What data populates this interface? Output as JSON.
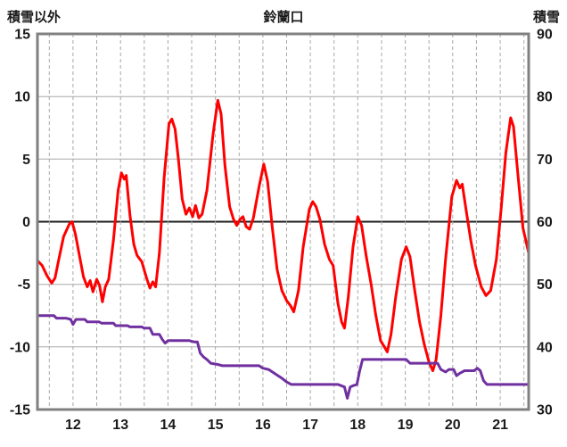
{
  "chart_data": {
    "type": "line",
    "title": "鈴蘭口",
    "left_axis": {
      "label": "積雪以外",
      "min": -15,
      "max": 15,
      "ticks": [
        15,
        10,
        5,
        0,
        -5,
        -10,
        -15
      ]
    },
    "right_axis": {
      "label": "積雪",
      "min": 30,
      "max": 90,
      "ticks": [
        90,
        80,
        70,
        60,
        50,
        40,
        30
      ]
    },
    "x_axis": {
      "min": 11.75,
      "max": 22.1,
      "tick_labels": [
        "12",
        "13",
        "14",
        "15",
        "16",
        "17",
        "18",
        "19",
        "20",
        "21"
      ],
      "tick_positions": [
        12.5,
        13.5,
        14.5,
        15.5,
        16.5,
        17.5,
        18.5,
        19.5,
        20.5,
        21.5
      ],
      "grid": {
        "start": 12.0,
        "end": 22.0,
        "step": 0.5
      }
    },
    "colors": {
      "temperature": "#ff0000",
      "snow_depth": "#7030a0",
      "grid": "#a8a8a8",
      "zero_line": "#1a1a1a",
      "frame": "#808080",
      "tick_text": "#1a1a1a"
    },
    "legend": "none",
    "series": [
      {
        "name": "temperature",
        "axis": "left",
        "color": "#ff0000",
        "points": [
          [
            11.75,
            -3.1
          ],
          [
            11.85,
            -3.5
          ],
          [
            11.95,
            -4.3
          ],
          [
            12.05,
            -4.9
          ],
          [
            12.12,
            -4.5
          ],
          [
            12.2,
            -3.0
          ],
          [
            12.3,
            -1.2
          ],
          [
            12.42,
            -0.2
          ],
          [
            12.48,
            0.0
          ],
          [
            12.55,
            -1.0
          ],
          [
            12.65,
            -3.0
          ],
          [
            12.72,
            -4.4
          ],
          [
            12.8,
            -5.2
          ],
          [
            12.86,
            -4.7
          ],
          [
            12.92,
            -5.6
          ],
          [
            13.0,
            -4.6
          ],
          [
            13.06,
            -5.1
          ],
          [
            13.12,
            -6.4
          ],
          [
            13.18,
            -5.2
          ],
          [
            13.25,
            -4.6
          ],
          [
            13.35,
            -1.5
          ],
          [
            13.45,
            2.5
          ],
          [
            13.52,
            3.9
          ],
          [
            13.58,
            3.4
          ],
          [
            13.62,
            3.7
          ],
          [
            13.7,
            0.5
          ],
          [
            13.78,
            -1.8
          ],
          [
            13.85,
            -2.7
          ],
          [
            13.95,
            -3.2
          ],
          [
            14.05,
            -4.5
          ],
          [
            14.12,
            -5.3
          ],
          [
            14.18,
            -4.8
          ],
          [
            14.24,
            -5.2
          ],
          [
            14.32,
            -2.5
          ],
          [
            14.42,
            3.5
          ],
          [
            14.52,
            7.8
          ],
          [
            14.58,
            8.2
          ],
          [
            14.65,
            7.4
          ],
          [
            14.72,
            5.0
          ],
          [
            14.8,
            1.8
          ],
          [
            14.88,
            0.6
          ],
          [
            14.95,
            1.1
          ],
          [
            15.02,
            0.4
          ],
          [
            15.08,
            1.3
          ],
          [
            15.15,
            0.3
          ],
          [
            15.22,
            0.6
          ],
          [
            15.32,
            2.5
          ],
          [
            15.45,
            7.0
          ],
          [
            15.55,
            9.7
          ],
          [
            15.62,
            8.6
          ],
          [
            15.7,
            4.5
          ],
          [
            15.8,
            1.2
          ],
          [
            15.88,
            0.2
          ],
          [
            15.95,
            -0.3
          ],
          [
            16.02,
            0.2
          ],
          [
            16.08,
            0.4
          ],
          [
            16.15,
            -0.4
          ],
          [
            16.22,
            -0.6
          ],
          [
            16.3,
            0.3
          ],
          [
            16.42,
            2.8
          ],
          [
            16.52,
            4.6
          ],
          [
            16.6,
            3.2
          ],
          [
            16.7,
            -0.5
          ],
          [
            16.8,
            -3.8
          ],
          [
            16.9,
            -5.5
          ],
          [
            17.0,
            -6.3
          ],
          [
            17.08,
            -6.7
          ],
          [
            17.15,
            -7.2
          ],
          [
            17.25,
            -5.5
          ],
          [
            17.35,
            -2.0
          ],
          [
            17.48,
            1.0
          ],
          [
            17.55,
            1.6
          ],
          [
            17.62,
            1.2
          ],
          [
            17.7,
            0.2
          ],
          [
            17.8,
            -1.8
          ],
          [
            17.9,
            -3.0
          ],
          [
            17.98,
            -3.5
          ],
          [
            18.08,
            -6.5
          ],
          [
            18.16,
            -8.0
          ],
          [
            18.22,
            -8.5
          ],
          [
            18.3,
            -6.0
          ],
          [
            18.4,
            -2.0
          ],
          [
            18.5,
            0.4
          ],
          [
            18.58,
            -0.3
          ],
          [
            18.68,
            -2.8
          ],
          [
            18.78,
            -5.0
          ],
          [
            18.88,
            -7.5
          ],
          [
            18.98,
            -9.5
          ],
          [
            19.06,
            -10.0
          ],
          [
            19.12,
            -10.4
          ],
          [
            19.2,
            -9.0
          ],
          [
            19.3,
            -6.0
          ],
          [
            19.42,
            -3.0
          ],
          [
            19.52,
            -2.0
          ],
          [
            19.6,
            -2.8
          ],
          [
            19.7,
            -5.5
          ],
          [
            19.8,
            -8.0
          ],
          [
            19.9,
            -9.8
          ],
          [
            20.0,
            -11.2
          ],
          [
            20.08,
            -11.9
          ],
          [
            20.15,
            -11.0
          ],
          [
            20.25,
            -7.5
          ],
          [
            20.35,
            -3.0
          ],
          [
            20.48,
            2.0
          ],
          [
            20.58,
            3.3
          ],
          [
            20.65,
            2.7
          ],
          [
            20.7,
            3.0
          ],
          [
            20.78,
            1.0
          ],
          [
            20.88,
            -1.5
          ],
          [
            20.98,
            -3.5
          ],
          [
            21.1,
            -5.2
          ],
          [
            21.2,
            -5.9
          ],
          [
            21.3,
            -5.5
          ],
          [
            21.42,
            -3.0
          ],
          [
            21.52,
            1.0
          ],
          [
            21.62,
            5.5
          ],
          [
            21.72,
            8.3
          ],
          [
            21.78,
            7.6
          ],
          [
            21.88,
            3.5
          ],
          [
            21.98,
            -0.5
          ],
          [
            22.1,
            -2.5
          ]
        ]
      },
      {
        "name": "snow-depth",
        "axis": "right",
        "color": "#7030a0",
        "points": [
          [
            11.75,
            45.0
          ],
          [
            12.1,
            45.0
          ],
          [
            12.15,
            44.6
          ],
          [
            12.35,
            44.6
          ],
          [
            12.45,
            44.4
          ],
          [
            12.5,
            43.6
          ],
          [
            12.56,
            44.4
          ],
          [
            12.75,
            44.4
          ],
          [
            12.8,
            44.0
          ],
          [
            13.05,
            44.0
          ],
          [
            13.1,
            43.8
          ],
          [
            13.35,
            43.8
          ],
          [
            13.4,
            43.4
          ],
          [
            13.65,
            43.4
          ],
          [
            13.7,
            43.2
          ],
          [
            13.95,
            43.2
          ],
          [
            14.0,
            43.0
          ],
          [
            14.12,
            43.0
          ],
          [
            14.18,
            42.0
          ],
          [
            14.32,
            42.0
          ],
          [
            14.38,
            41.2
          ],
          [
            14.44,
            40.6
          ],
          [
            14.5,
            41.0
          ],
          [
            14.95,
            41.0
          ],
          [
            15.05,
            40.8
          ],
          [
            15.12,
            40.8
          ],
          [
            15.18,
            39.0
          ],
          [
            15.25,
            38.4
          ],
          [
            15.32,
            38.0
          ],
          [
            15.4,
            37.4
          ],
          [
            15.55,
            37.2
          ],
          [
            15.65,
            37.0
          ],
          [
            16.42,
            37.0
          ],
          [
            16.5,
            36.6
          ],
          [
            16.62,
            36.4
          ],
          [
            16.7,
            36.0
          ],
          [
            16.82,
            35.4
          ],
          [
            16.9,
            35.0
          ],
          [
            17.0,
            34.4
          ],
          [
            17.1,
            34.0
          ],
          [
            18.08,
            34.0
          ],
          [
            18.15,
            33.8
          ],
          [
            18.22,
            33.6
          ],
          [
            18.28,
            31.8
          ],
          [
            18.34,
            33.6
          ],
          [
            18.4,
            33.8
          ],
          [
            18.48,
            34.0
          ],
          [
            18.54,
            36.2
          ],
          [
            18.6,
            38.0
          ],
          [
            19.52,
            38.0
          ],
          [
            19.6,
            37.4
          ],
          [
            20.18,
            37.4
          ],
          [
            20.25,
            36.4
          ],
          [
            20.35,
            36.0
          ],
          [
            20.42,
            36.4
          ],
          [
            20.52,
            36.4
          ],
          [
            20.58,
            35.4
          ],
          [
            20.65,
            35.8
          ],
          [
            20.75,
            36.2
          ],
          [
            20.95,
            36.2
          ],
          [
            21.02,
            36.6
          ],
          [
            21.08,
            36.2
          ],
          [
            21.15,
            34.6
          ],
          [
            21.22,
            34.0
          ],
          [
            22.1,
            34.0
          ]
        ]
      }
    ]
  }
}
